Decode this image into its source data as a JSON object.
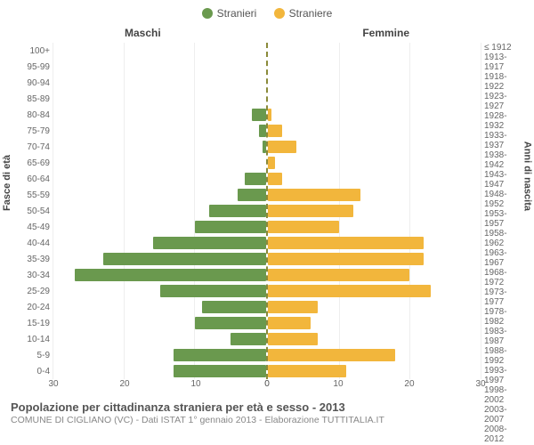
{
  "legend": {
    "male": {
      "label": "Stranieri",
      "color": "#6a994e"
    },
    "female": {
      "label": "Straniere",
      "color": "#f2b63c"
    }
  },
  "column_titles": {
    "left": "Maschi",
    "right": "Femmine"
  },
  "axis_labels": {
    "left": "Fasce di età",
    "right": "Anni di nascita"
  },
  "chart": {
    "type": "population-pyramid",
    "background": "#ffffff",
    "grid_color": "#eeeeee",
    "center_line_color": "#8a8a3a",
    "tick_font_size": 10,
    "title_font_size": 12,
    "x_max": 30,
    "x_ticks_left": [
      30,
      20,
      10,
      0
    ],
    "x_ticks_right": [
      0,
      10,
      20,
      30
    ],
    "bins": [
      {
        "age": "100+",
        "birth": "≤ 1912",
        "m": 0,
        "f": 0
      },
      {
        "age": "95-99",
        "birth": "1913-1917",
        "m": 0,
        "f": 0
      },
      {
        "age": "90-94",
        "birth": "1918-1922",
        "m": 0,
        "f": 0
      },
      {
        "age": "85-89",
        "birth": "1923-1927",
        "m": 0,
        "f": 0
      },
      {
        "age": "80-84",
        "birth": "1928-1932",
        "m": 2,
        "f": 0.5
      },
      {
        "age": "75-79",
        "birth": "1933-1937",
        "m": 1,
        "f": 2
      },
      {
        "age": "70-74",
        "birth": "1938-1942",
        "m": 0.5,
        "f": 4
      },
      {
        "age": "65-69",
        "birth": "1943-1947",
        "m": 0,
        "f": 1
      },
      {
        "age": "60-64",
        "birth": "1948-1952",
        "m": 3,
        "f": 2
      },
      {
        "age": "55-59",
        "birth": "1953-1957",
        "m": 4,
        "f": 13
      },
      {
        "age": "50-54",
        "birth": "1958-1962",
        "m": 8,
        "f": 12
      },
      {
        "age": "45-49",
        "birth": "1963-1967",
        "m": 10,
        "f": 10
      },
      {
        "age": "40-44",
        "birth": "1968-1972",
        "m": 16,
        "f": 22
      },
      {
        "age": "35-39",
        "birth": "1973-1977",
        "m": 23,
        "f": 22
      },
      {
        "age": "30-34",
        "birth": "1978-1982",
        "m": 27,
        "f": 20
      },
      {
        "age": "25-29",
        "birth": "1983-1987",
        "m": 15,
        "f": 23
      },
      {
        "age": "20-24",
        "birth": "1988-1992",
        "m": 9,
        "f": 7
      },
      {
        "age": "15-19",
        "birth": "1993-1997",
        "m": 10,
        "f": 6
      },
      {
        "age": "10-14",
        "birth": "1998-2002",
        "m": 5,
        "f": 7
      },
      {
        "age": "5-9",
        "birth": "2003-2007",
        "m": 13,
        "f": 18
      },
      {
        "age": "0-4",
        "birth": "2008-2012",
        "m": 13,
        "f": 11
      }
    ]
  },
  "footer": {
    "title": "Popolazione per cittadinanza straniera per età e sesso - 2013",
    "subtitle": "COMUNE DI CIGLIANO (VC) - Dati ISTAT 1° gennaio 2013 - Elaborazione TUTTITALIA.IT"
  }
}
